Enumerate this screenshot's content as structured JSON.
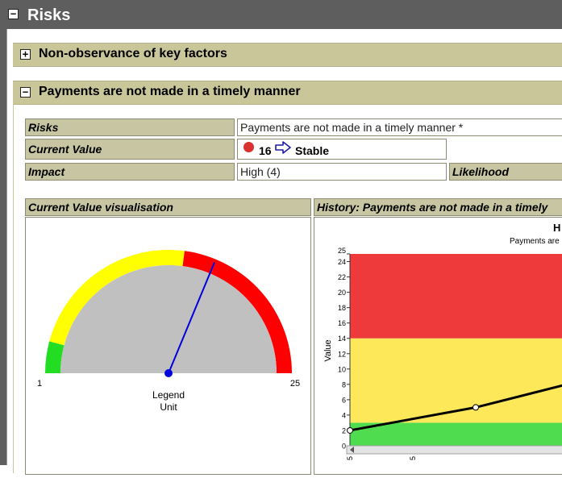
{
  "title_bar": {
    "title": "Risks",
    "toggle": "−"
  },
  "sections": [
    {
      "label": "Non-observance of key factors",
      "toggle": "+"
    },
    {
      "label": "Payments are not made in a timely manner",
      "toggle": "−"
    }
  ],
  "details": {
    "risks_label": "Risks",
    "risks_value": "Payments are not made in a timely manner *",
    "current_value_label": "Current Value",
    "current_value_number": "16",
    "current_value_trend": "Stable",
    "status_color": "#d93030",
    "impact_label": "Impact",
    "impact_value": "High (4)",
    "likelihood_label": "Likelihood"
  },
  "gauge_panel": {
    "header": "Current Value visualisation",
    "min_label": "1",
    "max_label": "25",
    "legend_label": "Legend",
    "unit_label": "Unit",
    "value": 16,
    "min": 1,
    "max": 25,
    "bands": [
      {
        "from": 1,
        "to": 3,
        "color": "#22dd22"
      },
      {
        "from": 3,
        "to": 14,
        "color": "#ffff00"
      },
      {
        "from": 14,
        "to": 25,
        "color": "#ff0000"
      }
    ],
    "needle_color": "#0000dd",
    "face_color": "#c0c0c0"
  },
  "history_panel": {
    "header": "History: Payments are not made in a timely",
    "chart_title": "H",
    "chart_subtitle": "Payments are",
    "ylabel": "Value",
    "ylim": [
      0,
      25
    ],
    "yticks": [
      "0",
      "2",
      "4",
      "6",
      "8",
      "10",
      "12",
      "14",
      "16",
      "18",
      "20",
      "22",
      "24",
      "25"
    ],
    "xticks": [
      "5",
      "5"
    ],
    "bands": [
      {
        "from": 0,
        "to": 3,
        "color": "#4fdd4f"
      },
      {
        "from": 3,
        "to": 14,
        "color": "#fde85a"
      },
      {
        "from": 14,
        "to": 25,
        "color": "#ee3a3a"
      }
    ]
  },
  "chart_data": {
    "type": "line",
    "title": "H",
    "subtitle": "Payments are",
    "xlabel": "",
    "ylabel": "Value",
    "ylim": [
      0,
      25
    ],
    "series": [
      {
        "name": "",
        "x_positions": [
          0,
          0.5,
          1
        ],
        "values": [
          2,
          5,
          8
        ]
      }
    ]
  }
}
